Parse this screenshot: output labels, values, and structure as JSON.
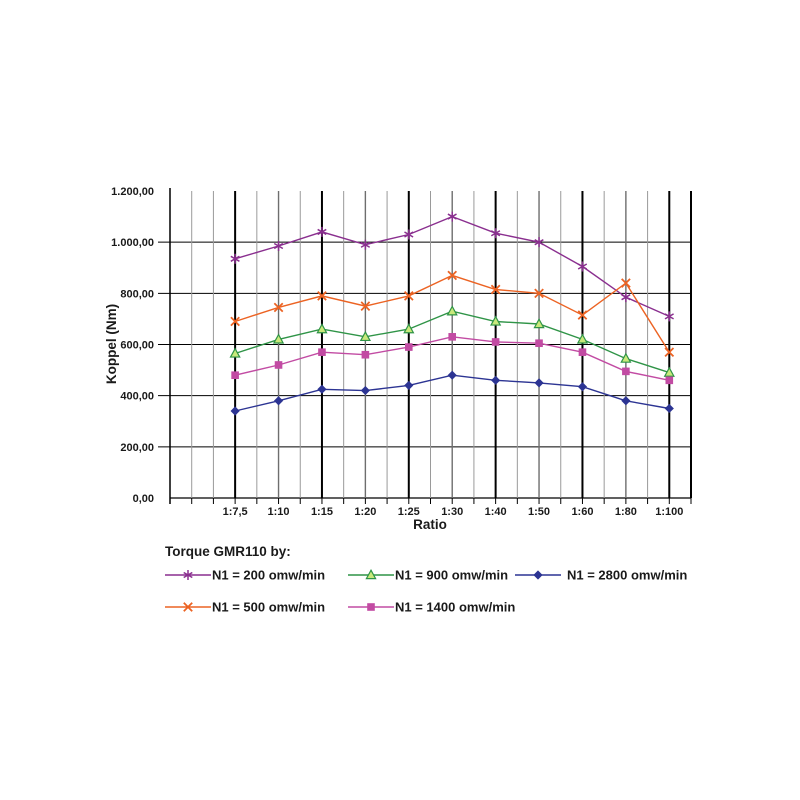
{
  "chart_data": {
    "type": "line",
    "title": "",
    "xlabel": "Ratio",
    "ylabel": "Koppel (Nm)",
    "ylim": [
      0,
      1200
    ],
    "ytick_step": 200,
    "ytick_labels": [
      "0,00",
      "200,00",
      "400,00",
      "600,00",
      "800,00",
      "1.000,00",
      "1.200,00"
    ],
    "categories": [
      "1:7,5",
      "1:10",
      "1:15",
      "1:20",
      "1:25",
      "1:30",
      "1:40",
      "1:50",
      "1:60",
      "1:80",
      "1:100"
    ],
    "grid": "major-vertical-black, minor-vertical-gray, horizontal-black",
    "legend_title": "Torque GMR110 by:",
    "legend_position": "bottom",
    "series": [
      {
        "name": "N1 = 200 omw/min",
        "color": "#8a2f8f",
        "marker": "star",
        "values": [
          935,
          985,
          1040,
          990,
          1030,
          1100,
          1035,
          1000,
          905,
          785,
          710
        ]
      },
      {
        "name": "N1 = 500 omw/min",
        "color": "#ec6323",
        "marker": "x",
        "values": [
          690,
          745,
          790,
          750,
          790,
          870,
          815,
          800,
          715,
          840,
          570
        ]
      },
      {
        "name": "N1 = 900 omw/min",
        "color": "#2f9447",
        "marker": "triangle",
        "marker_fill": "#c9e97b",
        "values": [
          565,
          620,
          660,
          630,
          660,
          730,
          690,
          680,
          620,
          545,
          490
        ]
      },
      {
        "name": "N1 = 1400 omw/min",
        "color": "#c24ba3",
        "marker": "square",
        "values": [
          480,
          520,
          570,
          560,
          590,
          630,
          610,
          605,
          570,
          495,
          460
        ]
      },
      {
        "name": "N1 = 2800 omw/min",
        "color": "#2c3493",
        "marker": "diamond",
        "values": [
          340,
          380,
          425,
          420,
          440,
          480,
          460,
          450,
          435,
          380,
          350
        ]
      }
    ]
  },
  "colors": {
    "grid_major": "#000000",
    "grid_mid": "#6e6e6e",
    "grid_minor": "#9a9a9a",
    "axis": "#000000",
    "text": "#1a1a1a"
  }
}
